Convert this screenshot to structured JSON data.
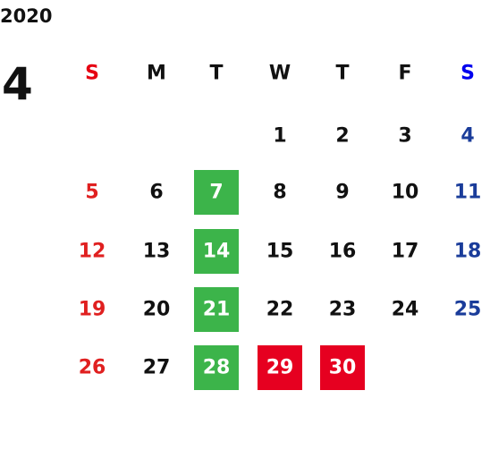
{
  "year": "2020",
  "month": "4",
  "weekdays": [
    "S",
    "M",
    "T",
    "W",
    "T",
    "F",
    "S"
  ],
  "weeks": [
    [
      null,
      null,
      null,
      1,
      2,
      3,
      4
    ],
    [
      5,
      6,
      7,
      8,
      9,
      10,
      11
    ],
    [
      12,
      13,
      14,
      15,
      16,
      17,
      18
    ],
    [
      19,
      20,
      21,
      22,
      23,
      24,
      25
    ],
    [
      26,
      27,
      28,
      29,
      30,
      null,
      null
    ]
  ]
}
